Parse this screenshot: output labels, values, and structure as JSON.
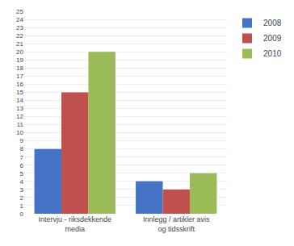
{
  "chart_data": {
    "type": "bar",
    "categories": [
      "Intervju - riksdekkende\nmedia",
      "Innlegg / artikler avis\nog tidsskrift"
    ],
    "series": [
      {
        "name": "2008",
        "color": "#4472C4",
        "values": [
          8,
          4
        ]
      },
      {
        "name": "2009",
        "color": "#C0504D",
        "values": [
          15,
          3
        ]
      },
      {
        "name": "2010",
        "color": "#9BBB59",
        "values": [
          20,
          5
        ]
      }
    ],
    "ylim": [
      0,
      25
    ],
    "yticks": [
      0,
      1,
      2,
      3,
      4,
      5,
      6,
      7,
      8,
      9,
      10,
      11,
      12,
      13,
      14,
      15,
      16,
      17,
      18,
      19,
      20,
      21,
      22,
      23,
      24,
      25
    ],
    "grid": true,
    "legend": "upper right"
  }
}
